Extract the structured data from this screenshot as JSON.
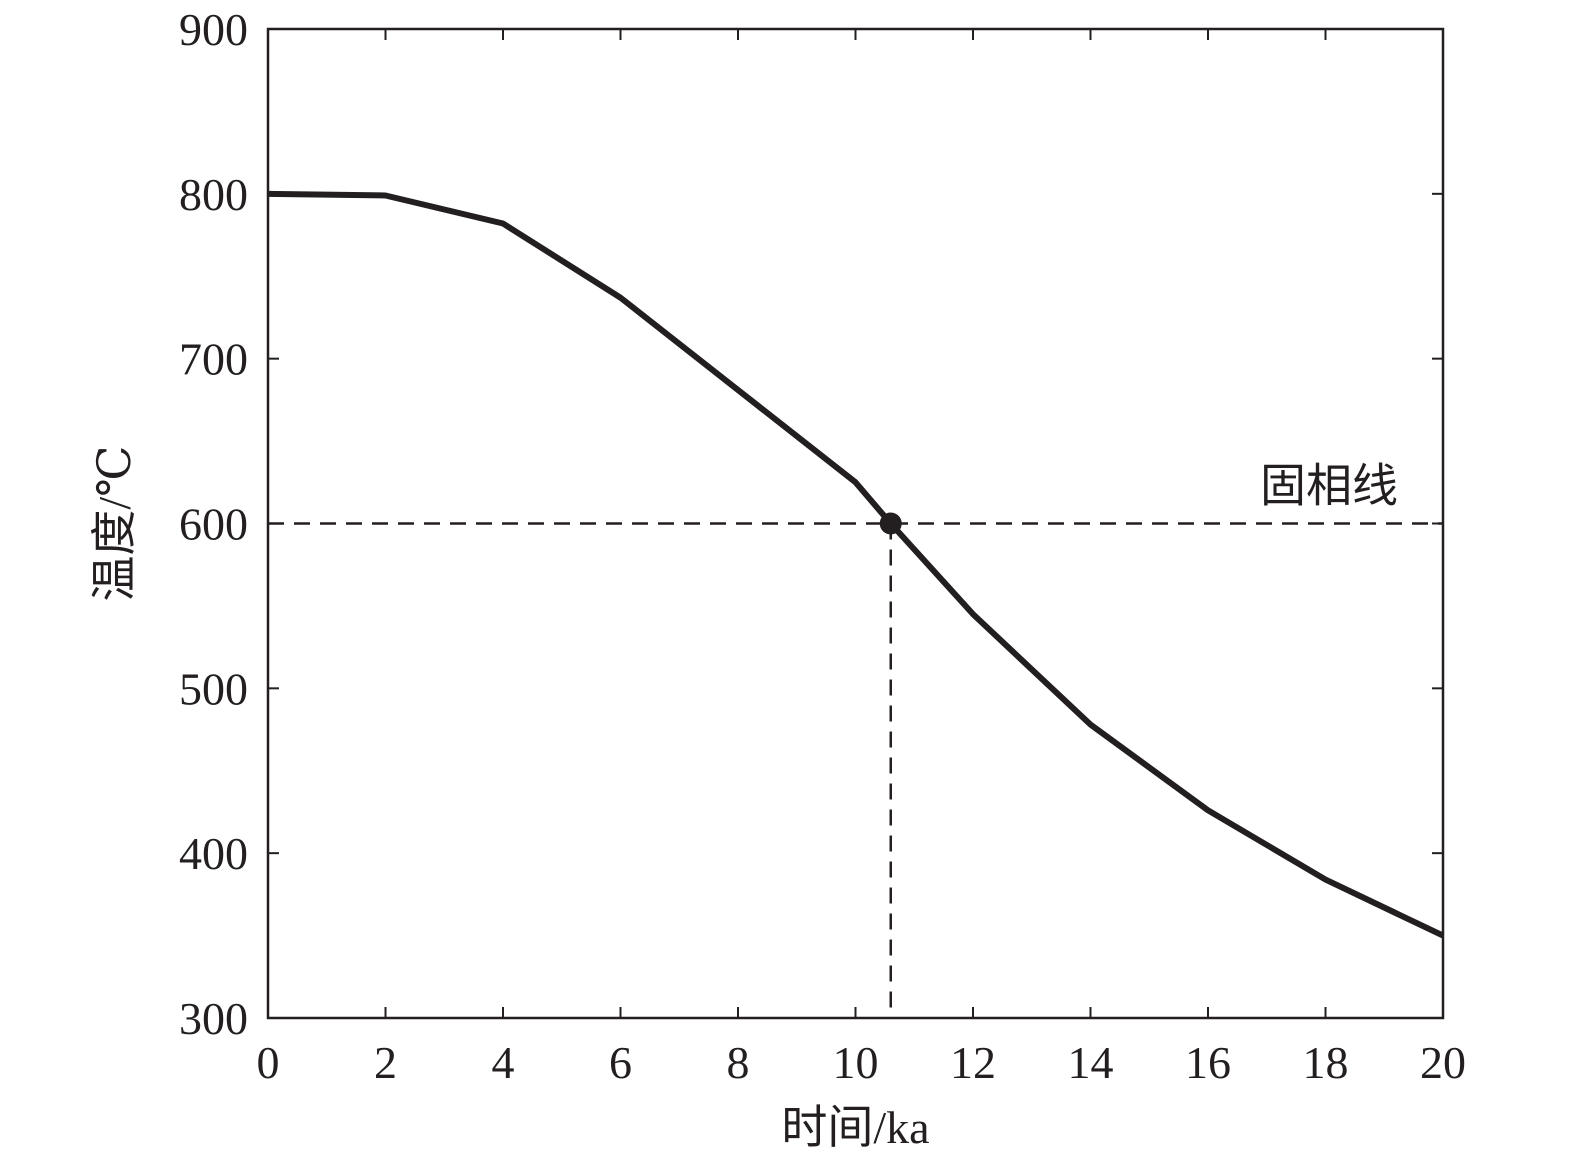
{
  "chart_data": {
    "type": "line",
    "xlabel": "时间/ka",
    "ylabel": "温度/℃",
    "xlim": [
      0,
      20
    ],
    "ylim": [
      300,
      900
    ],
    "xticks": [
      0,
      2,
      4,
      6,
      8,
      10,
      12,
      14,
      16,
      18,
      20
    ],
    "yticks": [
      300,
      400,
      500,
      600,
      700,
      800,
      900
    ],
    "grid": false,
    "series": [
      {
        "x": [
          0,
          2,
          4,
          6,
          8,
          10,
          10.6,
          12,
          14,
          16,
          18,
          20
        ],
        "y": [
          800,
          799,
          782,
          737,
          681,
          625,
          600,
          545,
          478,
          426,
          384,
          350
        ]
      }
    ],
    "reference_line": {
      "y": 600,
      "label": "固相线"
    },
    "marker": {
      "x": 10.6,
      "y": 600
    },
    "colors": {
      "line": "#231f20",
      "axes": "#231f20"
    }
  }
}
